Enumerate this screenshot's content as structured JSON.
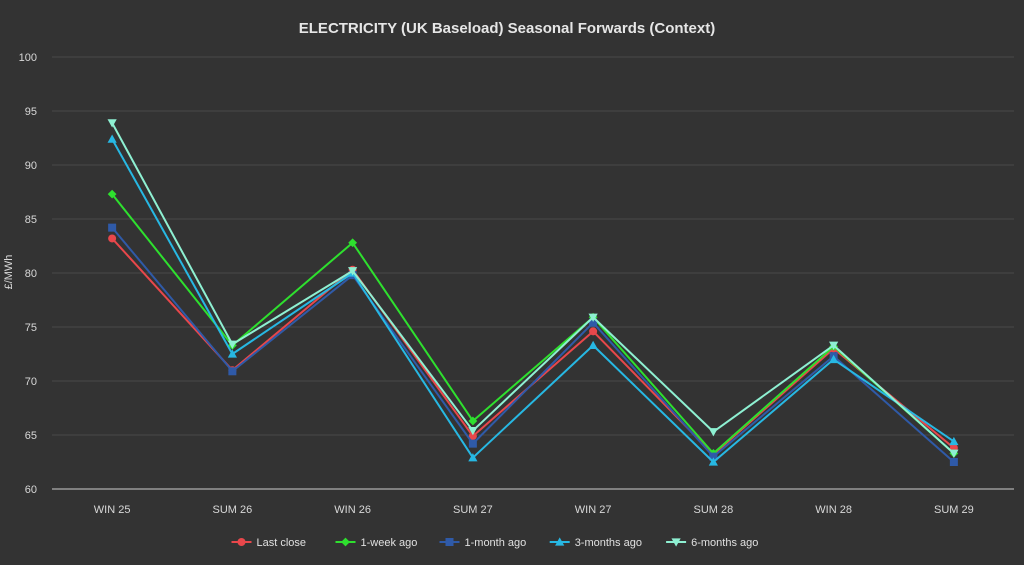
{
  "chart_data": {
    "type": "line",
    "title": "ELECTRICITY (UK Baseload) Seasonal Forwards (Context)",
    "xlabel": "",
    "ylabel": "£/MWh",
    "ylim": [
      60,
      100
    ],
    "yticks": [
      60,
      65,
      70,
      75,
      80,
      85,
      90,
      95,
      100
    ],
    "grid": true,
    "legend_position": "bottom",
    "categories": [
      "WIN 25",
      "SUM 26",
      "WIN 26",
      "SUM 27",
      "WIN 27",
      "SUM 28",
      "WIN 28",
      "SUM 29"
    ],
    "series": [
      {
        "name": "Last close",
        "color": "#e8474b",
        "marker": "circle",
        "values": [
          83.2,
          71.0,
          80.3,
          64.9,
          74.6,
          63.2,
          73.0,
          63.8
        ]
      },
      {
        "name": "1-week ago",
        "color": "#2ee02e",
        "marker": "diamond",
        "values": [
          87.3,
          73.3,
          82.8,
          66.3,
          75.9,
          63.3,
          73.2,
          63.3
        ]
      },
      {
        "name": "1-month ago",
        "color": "#2f5aa8",
        "marker": "square",
        "values": [
          84.2,
          70.9,
          79.8,
          64.2,
          75.4,
          63.0,
          72.3,
          62.5
        ]
      },
      {
        "name": "3-months ago",
        "color": "#27b8e3",
        "marker": "triangle-up",
        "values": [
          92.4,
          72.5,
          80.0,
          62.9,
          73.3,
          62.5,
          72.0,
          64.4
        ]
      },
      {
        "name": "6-months ago",
        "color": "#8ef0d2",
        "marker": "triangle-down",
        "values": [
          93.9,
          73.4,
          80.2,
          65.4,
          75.9,
          65.3,
          73.3,
          63.3
        ]
      }
    ]
  }
}
